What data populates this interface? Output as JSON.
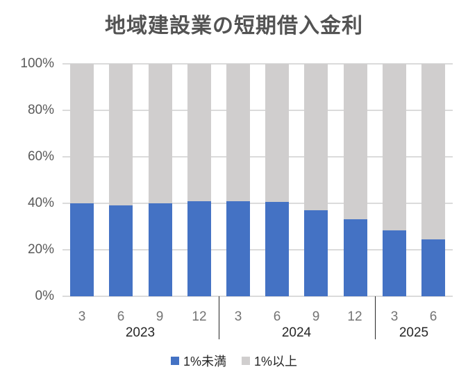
{
  "chart_data": {
    "type": "bar",
    "stacked": true,
    "percent_stacked": true,
    "title": "地域建設業の短期借入金利",
    "categories": [
      "3",
      "6",
      "9",
      "12",
      "3",
      "6",
      "9",
      "12",
      "3",
      "6"
    ],
    "year_groups": [
      {
        "label": "2023",
        "span": 4
      },
      {
        "label": "2024",
        "span": 4
      },
      {
        "label": "2025",
        "span": 2
      }
    ],
    "series": [
      {
        "name": "1%未満",
        "color": "#4472C4",
        "values": [
          40,
          39,
          40,
          41,
          41,
          40.5,
          37,
          33,
          28.5,
          24.5
        ]
      },
      {
        "name": "1%以上",
        "color": "#D0CECE",
        "values": [
          60,
          61,
          60,
          59,
          59,
          59.5,
          63,
          67,
          71.5,
          75.5
        ]
      }
    ],
    "xlabel": "",
    "ylabel": "",
    "ylim": [
      0,
      100
    ],
    "yticks": [
      "0%",
      "20%",
      "40%",
      "60%",
      "80%",
      "100%"
    ],
    "grid": true,
    "legend_position": "bottom"
  },
  "colors": {
    "background": "#FFFFFF",
    "gridline": "#DBDBDB",
    "axis_tick_text": "#595959",
    "month_label": "#737373",
    "year_label": "#262626",
    "year_separator": "#262626",
    "title_text": "#535353",
    "legend_text": "#262626"
  }
}
